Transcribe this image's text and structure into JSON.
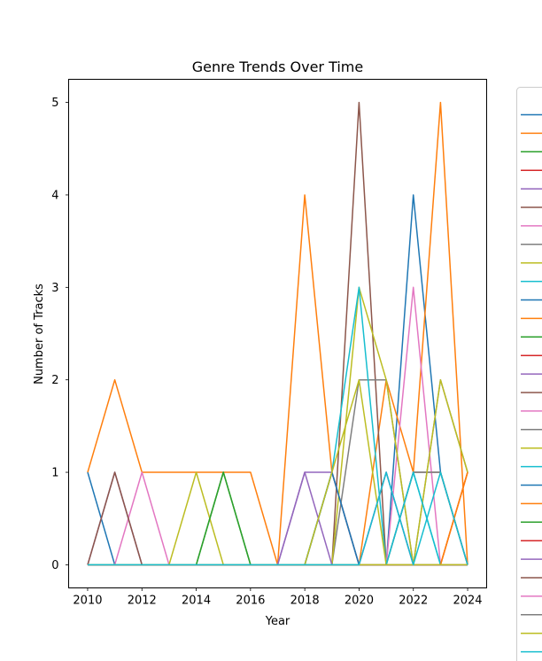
{
  "chart_data": {
    "type": "line",
    "title": "Genre Trends Over Time",
    "xlabel": "Year",
    "ylabel": "Number of Tracks",
    "x": [
      2010,
      2011,
      2012,
      2013,
      2014,
      2015,
      2016,
      2017,
      2018,
      2019,
      2020,
      2021,
      2022,
      2023,
      2024
    ],
    "xlim": [
      2009.3,
      2024.7
    ],
    "ylim": [
      -0.25,
      5.25
    ],
    "xticks": [
      2010,
      2012,
      2014,
      2016,
      2018,
      2020,
      2022,
      2024
    ],
    "yticks": [
      0,
      1,
      2,
      3,
      4,
      5
    ],
    "grid": false,
    "legend_position": "right (outside plot, partially cut off)",
    "series": [
      {
        "color": "#1f77b4",
        "values": [
          1,
          0,
          0,
          0,
          0,
          0,
          0,
          0,
          0,
          1,
          0,
          0,
          4,
          1,
          0
        ]
      },
      {
        "color": "#ff7f0e",
        "values": [
          1,
          2,
          1,
          1,
          1,
          1,
          1,
          0,
          4,
          1,
          0,
          2,
          1,
          5,
          0
        ]
      },
      {
        "color": "#2ca02c",
        "values": [
          0,
          0,
          0,
          0,
          0,
          1,
          0,
          0,
          0,
          0,
          0,
          0,
          0,
          0,
          0
        ]
      },
      {
        "color": "#d62728",
        "values": [
          0,
          0,
          0,
          0,
          0,
          0,
          0,
          0,
          0,
          0,
          0,
          0,
          0,
          0,
          1
        ]
      },
      {
        "color": "#9467bd",
        "values": [
          0,
          1,
          0,
          0,
          0,
          0,
          0,
          0,
          1,
          1,
          0,
          1,
          0,
          0,
          0
        ]
      },
      {
        "color": "#8c564b",
        "values": [
          0,
          0,
          0,
          0,
          0,
          0,
          0,
          0,
          0,
          0,
          5,
          0,
          1,
          1,
          0
        ]
      },
      {
        "color": "#e377c2",
        "values": [
          0,
          0,
          1,
          0,
          0,
          0,
          0,
          0,
          0,
          0,
          0,
          0,
          3,
          0,
          0
        ]
      },
      {
        "color": "#7f7f7f",
        "values": [
          0,
          0,
          0,
          0,
          0,
          0,
          0,
          0,
          0,
          0,
          2,
          2,
          0,
          2,
          1
        ]
      },
      {
        "color": "#bcbd22",
        "values": [
          0,
          0,
          0,
          0,
          1,
          0,
          0,
          0,
          0,
          0,
          3,
          2,
          0,
          0,
          0
        ]
      },
      {
        "color": "#17becf",
        "values": [
          0,
          0,
          0,
          0,
          0,
          0,
          0,
          0,
          0,
          1,
          3,
          0,
          1,
          0,
          0
        ]
      },
      {
        "color": "#1f77b4",
        "values": [
          0,
          0,
          0,
          0,
          0,
          0,
          0,
          0,
          0,
          1,
          0,
          0,
          0,
          0,
          0
        ]
      },
      {
        "color": "#ff7f0e",
        "values": [
          0,
          0,
          0,
          0,
          0,
          0,
          0,
          0,
          0,
          0,
          0,
          0,
          0,
          0,
          1
        ]
      },
      {
        "color": "#2ca02c",
        "values": [
          0,
          0,
          0,
          0,
          0,
          1,
          0,
          0,
          0,
          0,
          0,
          0,
          0,
          0,
          0
        ]
      },
      {
        "color": "#d62728",
        "values": [
          0,
          0,
          0,
          0,
          0,
          0,
          0,
          0,
          0,
          0,
          0,
          0,
          0,
          0,
          0
        ]
      },
      {
        "color": "#9467bd",
        "values": [
          0,
          0,
          0,
          0,
          0,
          0,
          0,
          0,
          1,
          0,
          0,
          1,
          0,
          0,
          0
        ]
      },
      {
        "color": "#8c564b",
        "values": [
          0,
          1,
          0,
          0,
          0,
          0,
          0,
          0,
          0,
          0,
          0,
          0,
          0,
          0,
          0
        ]
      },
      {
        "color": "#e377c2",
        "values": [
          0,
          0,
          0,
          0,
          0,
          0,
          0,
          0,
          0,
          0,
          0,
          0,
          0,
          0,
          0
        ]
      },
      {
        "color": "#7f7f7f",
        "values": [
          0,
          0,
          0,
          0,
          0,
          0,
          0,
          0,
          0,
          0,
          0,
          0,
          1,
          1,
          0
        ]
      },
      {
        "color": "#bcbd22",
        "values": [
          0,
          0,
          0,
          0,
          0,
          0,
          0,
          0,
          0,
          1,
          2,
          0,
          0,
          2,
          1
        ]
      },
      {
        "color": "#17becf",
        "values": [
          0,
          0,
          0,
          0,
          0,
          0,
          0,
          0,
          0,
          0,
          0,
          0,
          1,
          0,
          0
        ]
      },
      {
        "color": "#1f77b4",
        "values": [
          0,
          0,
          0,
          0,
          0,
          0,
          0,
          0,
          0,
          0,
          0,
          0,
          0,
          0,
          0
        ]
      },
      {
        "color": "#ff7f0e",
        "values": [
          0,
          0,
          0,
          0,
          0,
          0,
          0,
          0,
          0,
          0,
          0,
          0,
          0,
          0,
          1
        ]
      },
      {
        "color": "#2ca02c",
        "values": [
          0,
          0,
          0,
          0,
          0,
          0,
          0,
          0,
          0,
          0,
          0,
          0,
          0,
          0,
          0
        ]
      },
      {
        "color": "#d62728",
        "values": [
          0,
          0,
          0,
          0,
          0,
          0,
          0,
          0,
          0,
          0,
          0,
          0,
          0,
          0,
          0
        ]
      },
      {
        "color": "#9467bd",
        "values": [
          0,
          0,
          0,
          0,
          0,
          0,
          0,
          0,
          0,
          0,
          0,
          0,
          0,
          0,
          0
        ]
      },
      {
        "color": "#8c564b",
        "values": [
          0,
          0,
          0,
          0,
          0,
          0,
          0,
          0,
          0,
          0,
          0,
          0,
          0,
          0,
          0
        ]
      },
      {
        "color": "#e377c2",
        "values": [
          0,
          0,
          0,
          0,
          0,
          0,
          0,
          0,
          0,
          0,
          0,
          0,
          0,
          0,
          0
        ]
      },
      {
        "color": "#7f7f7f",
        "values": [
          0,
          0,
          0,
          0,
          0,
          0,
          0,
          0,
          0,
          0,
          0,
          0,
          0,
          0,
          0
        ]
      },
      {
        "color": "#bcbd22",
        "values": [
          0,
          0,
          0,
          0,
          0,
          0,
          0,
          0,
          0,
          0,
          0,
          0,
          0,
          0,
          0
        ]
      },
      {
        "color": "#17becf",
        "values": [
          0,
          0,
          0,
          0,
          0,
          0,
          0,
          0,
          0,
          0,
          0,
          1,
          0,
          1,
          0
        ]
      }
    ]
  }
}
